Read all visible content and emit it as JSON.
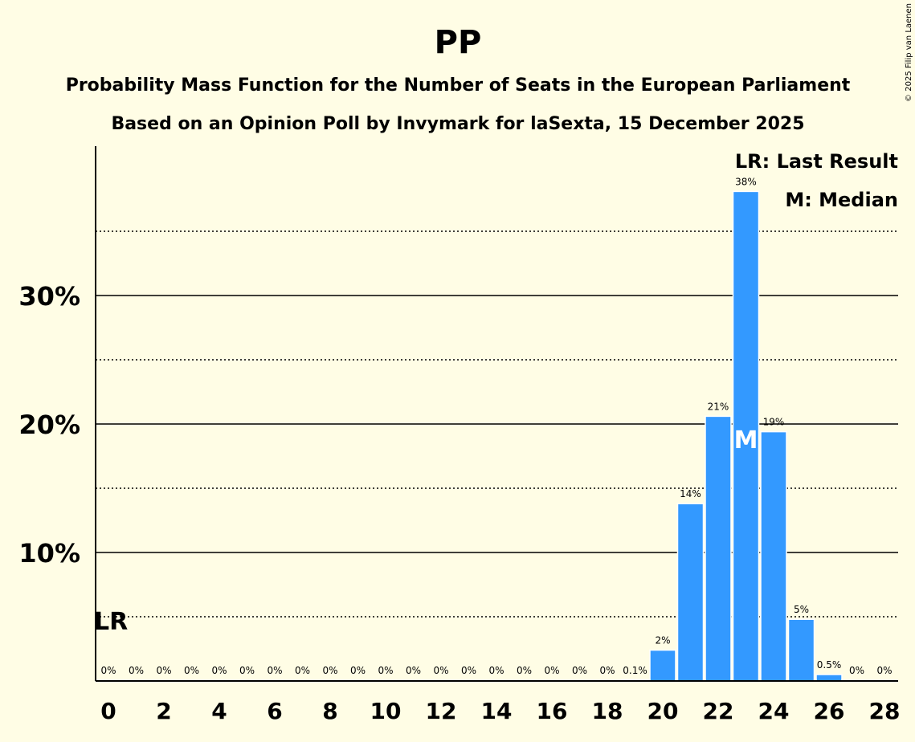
{
  "chart_data": {
    "type": "bar",
    "title": "PP",
    "subtitle1": "Probability Mass Function for the Number of Seats in the European Parliament",
    "subtitle2": "Based on an Opinion Poll by Invymark for laSexta, 15 December 2025",
    "copyright": "© 2025 Filip van Laenen",
    "xlabel": "",
    "ylabel": "",
    "x": [
      0,
      1,
      2,
      3,
      4,
      5,
      6,
      7,
      8,
      9,
      10,
      11,
      12,
      13,
      14,
      15,
      16,
      17,
      18,
      19,
      20,
      21,
      22,
      23,
      24,
      25,
      26,
      27,
      28
    ],
    "values": [
      0,
      0,
      0,
      0,
      0,
      0,
      0,
      0,
      0,
      0,
      0,
      0,
      0,
      0,
      0,
      0,
      0,
      0,
      0,
      0.1,
      2.4,
      13.8,
      20.6,
      38.1,
      19.4,
      4.8,
      0.5,
      0,
      0
    ],
    "data_labels": [
      "0%",
      "0%",
      "0%",
      "0%",
      "0%",
      "0%",
      "0%",
      "0%",
      "0%",
      "0%",
      "0%",
      "0%",
      "0%",
      "0%",
      "0%",
      "0%",
      "0%",
      "0%",
      "0%",
      "0.1%",
      "2%",
      "14%",
      "21%",
      "38%",
      "19%",
      "5%",
      "0.5%",
      "0%",
      "0%"
    ],
    "xticks": [
      0,
      2,
      4,
      6,
      8,
      10,
      12,
      14,
      16,
      18,
      20,
      22,
      24,
      26,
      28
    ],
    "yticks": [
      {
        "value": 10,
        "label": "10%"
      },
      {
        "value": 20,
        "label": "20%"
      },
      {
        "value": 30,
        "label": "30%"
      }
    ],
    "minor_gridlines": [
      5,
      15,
      25,
      35
    ],
    "ylim": [
      0,
      41.5
    ],
    "xlim": [
      -0.5,
      28.5
    ],
    "bar_color": "#3399ff",
    "last_result": {
      "seat": 0,
      "label": "LR"
    },
    "median": {
      "seat": 23,
      "label": "M"
    },
    "legend": [
      "LR: Last Result",
      "M: Median"
    ],
    "legend_position": "top-right"
  }
}
